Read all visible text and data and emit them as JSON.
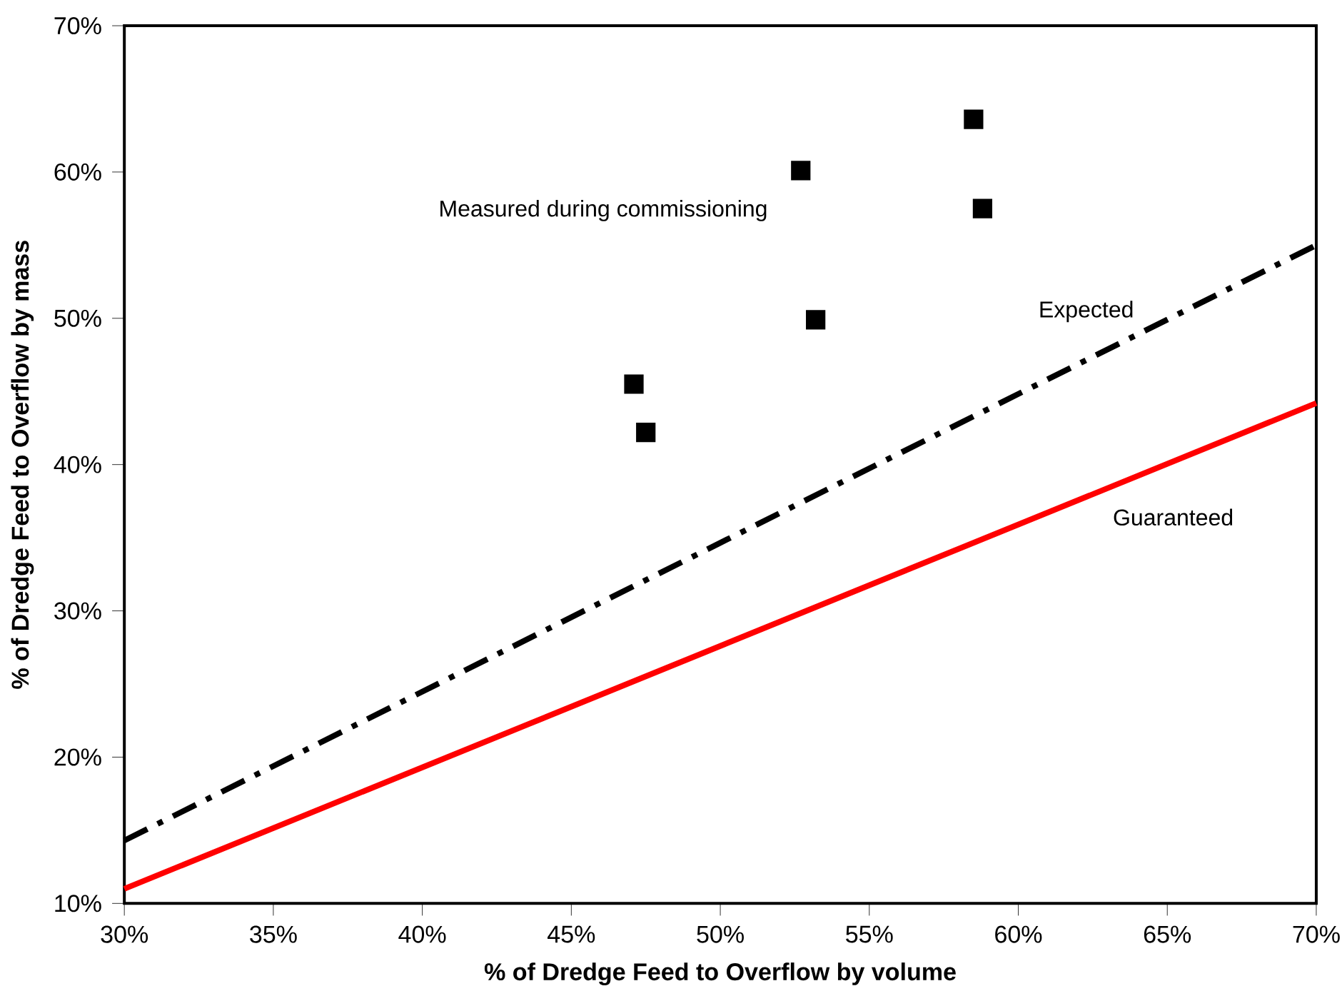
{
  "chart_data": {
    "type": "scatter",
    "xlabel": "% of Dredge Feed to Overflow by volume",
    "ylabel": "% of Dredge Feed to Overflow by mass",
    "xlim": [
      30,
      70
    ],
    "ylim": [
      10,
      70
    ],
    "xticks": [
      {
        "value": 30,
        "label": "30%"
      },
      {
        "value": 35,
        "label": "35%"
      },
      {
        "value": 40,
        "label": "40%"
      },
      {
        "value": 45,
        "label": "45%"
      },
      {
        "value": 50,
        "label": "50%"
      },
      {
        "value": 55,
        "label": "55%"
      },
      {
        "value": 60,
        "label": "60%"
      },
      {
        "value": 65,
        "label": "65%"
      },
      {
        "value": 70,
        "label": "70%"
      }
    ],
    "yticks": [
      {
        "value": 10,
        "label": "10%"
      },
      {
        "value": 20,
        "label": "20%"
      },
      {
        "value": 30,
        "label": "30%"
      },
      {
        "value": 40,
        "label": "40%"
      },
      {
        "value": 50,
        "label": "50%"
      },
      {
        "value": 60,
        "label": "60%"
      },
      {
        "value": 70,
        "label": "70%"
      }
    ],
    "grid": false,
    "legend": false,
    "series": [
      {
        "name": "Measured during commissioning",
        "color": "#000000",
        "marker": "square",
        "x": [
          47.1,
          47.5,
          52.7,
          53.2,
          58.5,
          58.8
        ],
        "values": [
          45.5,
          42.2,
          60.1,
          49.9,
          63.6,
          57.5
        ]
      },
      {
        "name": "Expected",
        "type": "line",
        "color": "#000000",
        "line_style": "dashdot",
        "x": [
          30,
          70
        ],
        "values": [
          14.3,
          55
        ]
      },
      {
        "name": "Guaranteed",
        "type": "line",
        "color": "#ff0000",
        "line_style": "solid",
        "x": [
          30,
          70
        ],
        "values": [
          11,
          44.2
        ]
      }
    ]
  }
}
